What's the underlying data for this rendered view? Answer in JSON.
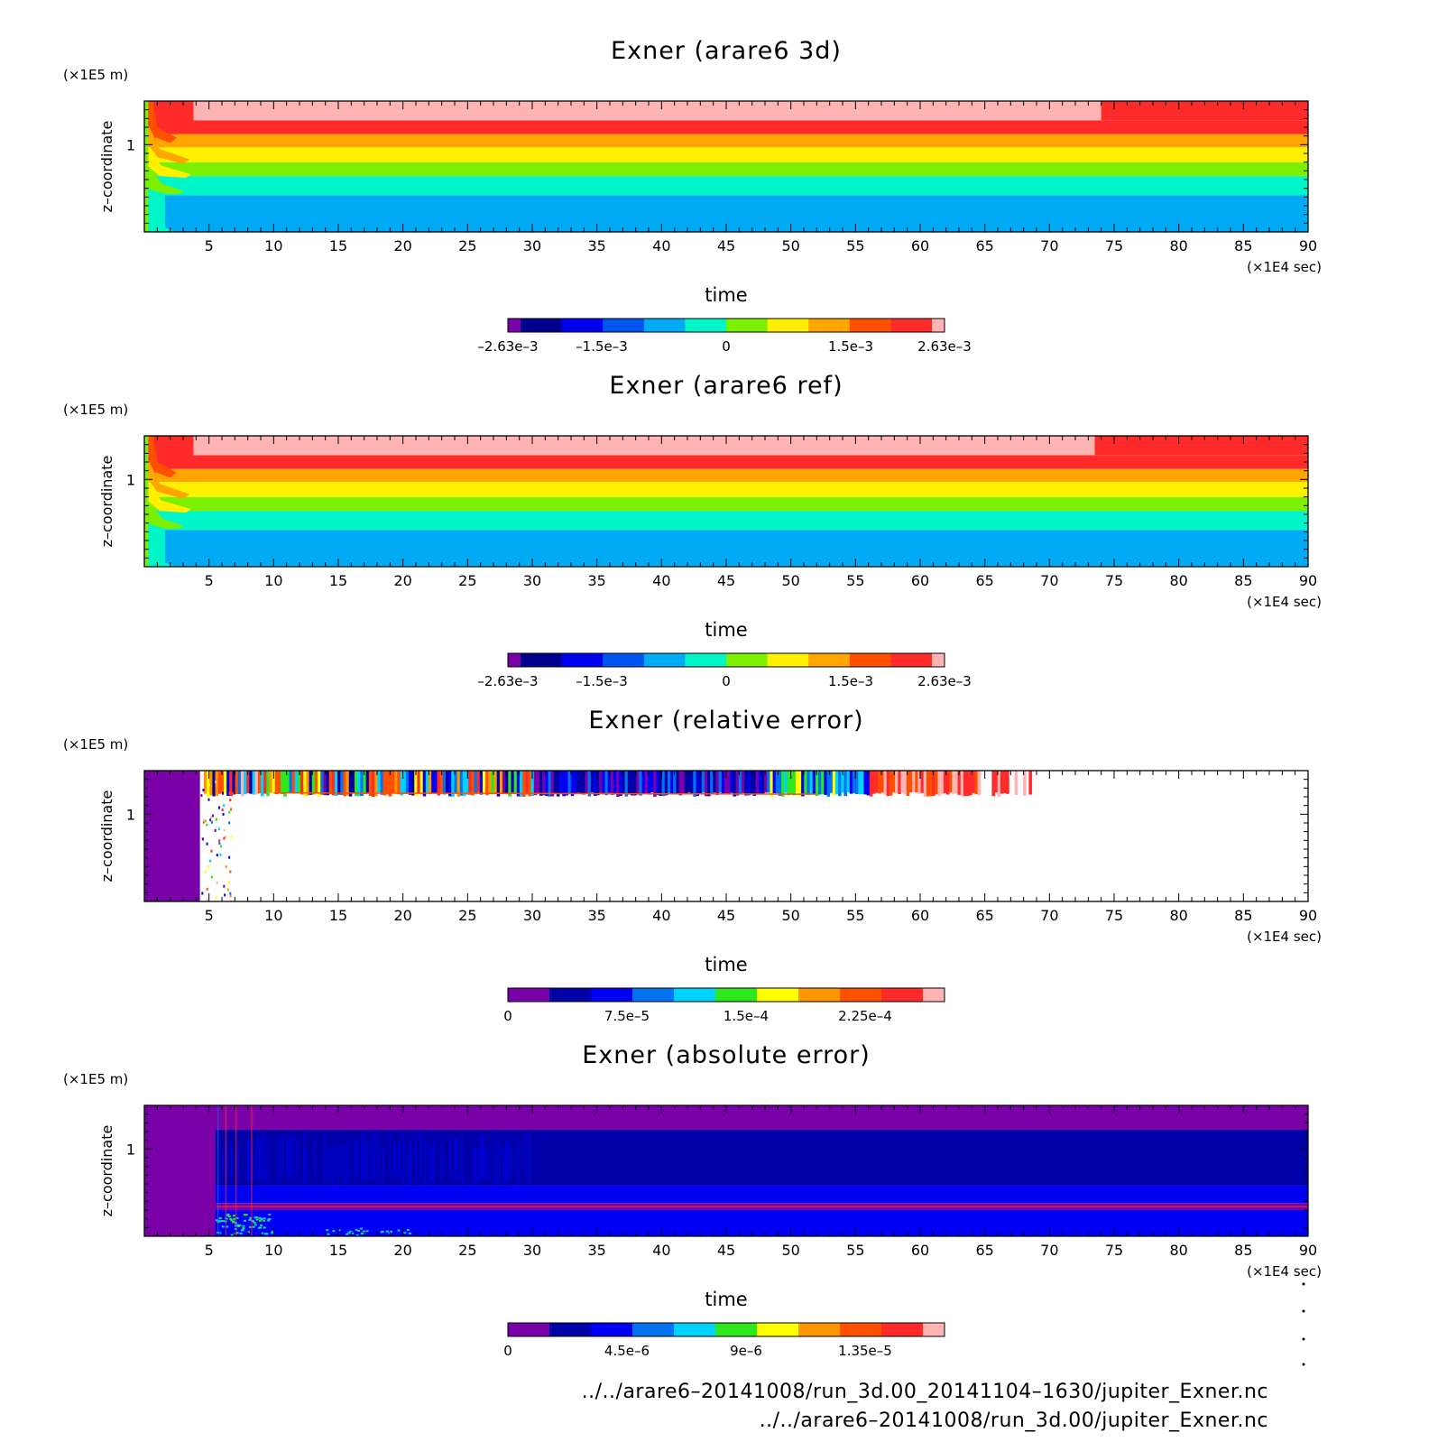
{
  "colors": {
    "exner_scale": [
      "#7a00a8",
      "#00008e",
      "#0000f0",
      "#0055ee",
      "#00aaf5",
      "#00f5c8",
      "#7df000",
      "#fff000",
      "#ffa500",
      "#ff5000",
      "#ff2a2a",
      "#ffb4b4"
    ],
    "relerr_scale": [
      "#7a00a8",
      "#0000a8",
      "#0000f5",
      "#0073f0",
      "#00d2ff",
      "#2ce61e",
      "#ffff00",
      "#ff9600",
      "#ff5000",
      "#ff2a2a",
      "#ffb4b4"
    ],
    "abserr_scale": [
      "#7a00a8",
      "#0000a8",
      "#0000f5",
      "#0073f0",
      "#00d2ff",
      "#2ce61e",
      "#ffff00",
      "#ff9600",
      "#ff5000",
      "#ff2a2a",
      "#ffb4b4"
    ]
  },
  "chart_data": [
    {
      "type": "heatmap",
      "title": "Exner (arare6 3d)",
      "xlabel": "time",
      "x_unit": "(×1E4 sec)",
      "ylabel": "z–coordinate",
      "y_unit": "(×1E5 m)",
      "xlim": [
        0,
        90
      ],
      "ylim": [
        0,
        1.5
      ],
      "x_ticks": [
        5,
        10,
        15,
        20,
        25,
        30,
        35,
        40,
        45,
        50,
        55,
        60,
        65,
        70,
        75,
        80,
        85,
        90
      ],
      "y_ticks": [
        1
      ],
      "bands": [
        {
          "z0": 0.0,
          "z1": 0.42,
          "level": 4
        },
        {
          "z0": 0.42,
          "z1": 0.64,
          "level": 5
        },
        {
          "z0": 0.64,
          "z1": 0.8,
          "level": 6
        },
        {
          "z0": 0.8,
          "z1": 0.97,
          "level": 7
        },
        {
          "z0": 0.97,
          "z1": 1.12,
          "level": 8
        },
        {
          "z0": 1.12,
          "z1": 1.28,
          "level": 10
        },
        {
          "z0": 1.28,
          "z1": 1.5,
          "level": 11
        }
      ],
      "top_band_change_time": 74,
      "top_band_level_after": 10,
      "colorbar": {
        "min": -0.00263,
        "max": 0.00263,
        "tick_values": [
          -0.00263,
          -0.0015,
          0,
          0.0015,
          0.00263
        ],
        "tick_labels": [
          "–2.63e–3",
          "–1.5e–3",
          "0",
          "1.5e–3",
          "2.63e–3"
        ]
      }
    },
    {
      "type": "heatmap",
      "title": "Exner (arare6 ref)",
      "xlabel": "time",
      "x_unit": "(×1E4 sec)",
      "ylabel": "z–coordinate",
      "y_unit": "(×1E5 m)",
      "xlim": [
        0,
        90
      ],
      "ylim": [
        0,
        1.5
      ],
      "x_ticks": [
        5,
        10,
        15,
        20,
        25,
        30,
        35,
        40,
        45,
        50,
        55,
        60,
        65,
        70,
        75,
        80,
        85,
        90
      ],
      "y_ticks": [
        1
      ],
      "bands": [
        {
          "z0": 0.0,
          "z1": 0.42,
          "level": 4
        },
        {
          "z0": 0.42,
          "z1": 0.64,
          "level": 5
        },
        {
          "z0": 0.64,
          "z1": 0.8,
          "level": 6
        },
        {
          "z0": 0.8,
          "z1": 0.97,
          "level": 7
        },
        {
          "z0": 0.97,
          "z1": 1.12,
          "level": 8
        },
        {
          "z0": 1.12,
          "z1": 1.28,
          "level": 10
        },
        {
          "z0": 1.28,
          "z1": 1.5,
          "level": 11
        }
      ],
      "top_band_change_time": 73.5,
      "top_band_level_after": 10,
      "colorbar": {
        "min": -0.00263,
        "max": 0.00263,
        "tick_values": [
          -0.00263,
          -0.0015,
          0,
          0.0015,
          0.00263
        ],
        "tick_labels": [
          "–2.63e–3",
          "–1.5e–3",
          "0",
          "1.5e–3",
          "2.63e–3"
        ]
      }
    },
    {
      "type": "heatmap",
      "title": "Exner (relative error)",
      "xlabel": "time",
      "x_unit": "(×1E4 sec)",
      "ylabel": "z–coordinate",
      "y_unit": "(×1E5 m)",
      "xlim": [
        0,
        90
      ],
      "ylim": [
        0,
        1.5
      ],
      "x_ticks": [
        5,
        10,
        15,
        20,
        25,
        30,
        35,
        40,
        45,
        50,
        55,
        60,
        65,
        70,
        75,
        80,
        85,
        90
      ],
      "y_ticks": [
        1
      ],
      "solid_region_end_time": 4.3,
      "streak_region_end_time": 69,
      "streak_bottom_z": 1.25,
      "colorbar": {
        "min": 0,
        "max": 0.000275,
        "tick_values": [
          0,
          7.5e-05,
          0.00015,
          0.000225
        ],
        "tick_labels": [
          "0",
          "7.5e–5",
          "1.5e–4",
          "2.25e–4"
        ]
      }
    },
    {
      "type": "heatmap",
      "title": "Exner (absolute error)",
      "xlabel": "time",
      "x_unit": "(×1E4 sec)",
      "ylabel": "z–coordinate",
      "y_unit": "(×1E5 m)",
      "xlim": [
        0,
        90
      ],
      "ylim": [
        0,
        1.5
      ],
      "x_ticks": [
        5,
        10,
        15,
        20,
        25,
        30,
        35,
        40,
        45,
        50,
        55,
        60,
        65,
        70,
        75,
        80,
        85,
        90
      ],
      "y_ticks": [
        1
      ],
      "solid_region_end_time": 5.5,
      "bands": [
        {
          "z0": 0.0,
          "z1": 0.3,
          "level": 2
        },
        {
          "z0": 0.3,
          "z1": 0.38,
          "level": 0
        },
        {
          "z0": 0.38,
          "z1": 0.58,
          "level": 2
        },
        {
          "z0": 0.58,
          "z1": 1.22,
          "level": 1
        },
        {
          "z0": 1.22,
          "z1": 1.5,
          "level": 0
        }
      ],
      "colorbar": {
        "min": 0,
        "max": 1.65e-05,
        "tick_values": [
          0,
          4.5e-06,
          9e-06,
          1.35e-05
        ],
        "tick_labels": [
          "0",
          "4.5e–6",
          "9e–6",
          "1.35e–5"
        ]
      }
    }
  ],
  "footer": {
    "line1": "../../arare6–20141008/run_3d.00_20141104–1630/jupiter_Exner.nc",
    "line2": "../../arare6–20141008/run_3d.00/jupiter_Exner.nc"
  }
}
